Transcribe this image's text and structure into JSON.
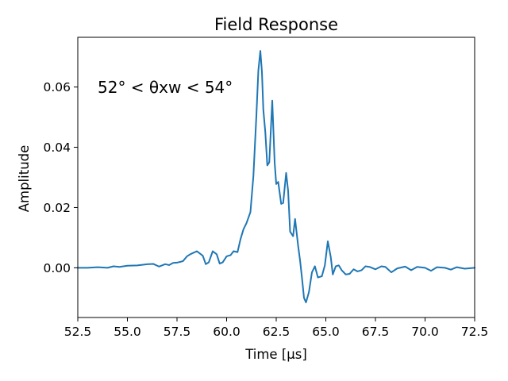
{
  "chart_data": {
    "type": "line",
    "title": "Field Response",
    "xlabel": "Time [μs]",
    "ylabel": "Amplitude",
    "annotation": "52° < θxw < 54°",
    "xlim": [
      52.5,
      72.5
    ],
    "ylim": [
      -0.0165,
      0.0765
    ],
    "xticks": [
      52.5,
      55.0,
      57.5,
      60.0,
      62.5,
      65.0,
      67.5,
      70.0,
      72.5
    ],
    "xtick_labels": [
      "52.5",
      "55.0",
      "57.5",
      "60.0",
      "62.5",
      "65.0",
      "67.5",
      "70.0",
      "72.5"
    ],
    "yticks": [
      0.0,
      0.02,
      0.04,
      0.06
    ],
    "ytick_labels": [
      "0.00",
      "0.02",
      "0.04",
      "0.06"
    ],
    "grid": false,
    "line_color": "#1f77b4",
    "series": [
      {
        "x": [
          52.5,
          53.0,
          53.5,
          54.0,
          54.3,
          54.6,
          55.0,
          55.5,
          56.0,
          56.3,
          56.6,
          56.9,
          57.1,
          57.3,
          57.5,
          57.8,
          58.0,
          58.2,
          58.5,
          58.8,
          58.95,
          59.1,
          59.3,
          59.5,
          59.65,
          59.8,
          60.0,
          60.2,
          60.35,
          60.55,
          60.7,
          60.85,
          61.0,
          61.2,
          61.35,
          61.5,
          61.6,
          61.7,
          61.78,
          61.85,
          61.95,
          62.05,
          62.15,
          62.3,
          62.42,
          62.5,
          62.6,
          62.75,
          62.85,
          63.0,
          63.1,
          63.2,
          63.35,
          63.45,
          63.6,
          63.7,
          63.8,
          63.9,
          64.0,
          64.15,
          64.3,
          64.45,
          64.6,
          64.8,
          64.95,
          65.1,
          65.25,
          65.35,
          65.5,
          65.65,
          65.8,
          66.0,
          66.2,
          66.4,
          66.6,
          66.8,
          67.0,
          67.2,
          67.5,
          67.8,
          68.0,
          68.3,
          68.6,
          69.0,
          69.3,
          69.6,
          70.0,
          70.3,
          70.6,
          71.0,
          71.3,
          71.6,
          72.0,
          72.5
        ],
        "y": [
          0.0,
          0.0,
          0.0002,
          0.0,
          0.0005,
          0.0003,
          0.0007,
          0.0008,
          0.0012,
          0.0013,
          0.0004,
          0.0012,
          0.0009,
          0.0016,
          0.0017,
          0.0022,
          0.0038,
          0.0046,
          0.0055,
          0.004,
          0.0012,
          0.0018,
          0.0055,
          0.0045,
          0.0014,
          0.0018,
          0.0038,
          0.0042,
          0.0055,
          0.0052,
          0.0095,
          0.0128,
          0.0148,
          0.0185,
          0.0305,
          0.0505,
          0.0655,
          0.072,
          0.065,
          0.0525,
          0.045,
          0.034,
          0.035,
          0.0555,
          0.035,
          0.0278,
          0.0285,
          0.0212,
          0.0215,
          0.0315,
          0.0255,
          0.012,
          0.0105,
          0.0162,
          0.0075,
          0.0025,
          -0.0035,
          -0.01,
          -0.0115,
          -0.008,
          -0.0015,
          0.0005,
          -0.0032,
          -0.0028,
          0.0008,
          0.0088,
          0.0035,
          -0.0022,
          0.0005,
          0.0008,
          -0.0008,
          -0.0022,
          -0.002,
          -0.0005,
          -0.0012,
          -0.0008,
          0.0005,
          0.0003,
          -0.0005,
          0.0005,
          0.0003,
          -0.0015,
          -0.0002,
          0.0004,
          -0.0008,
          0.0003,
          0.0,
          -0.001,
          0.0002,
          0.0,
          -0.0006,
          0.0002,
          -0.0003,
          0.0
        ]
      }
    ]
  }
}
